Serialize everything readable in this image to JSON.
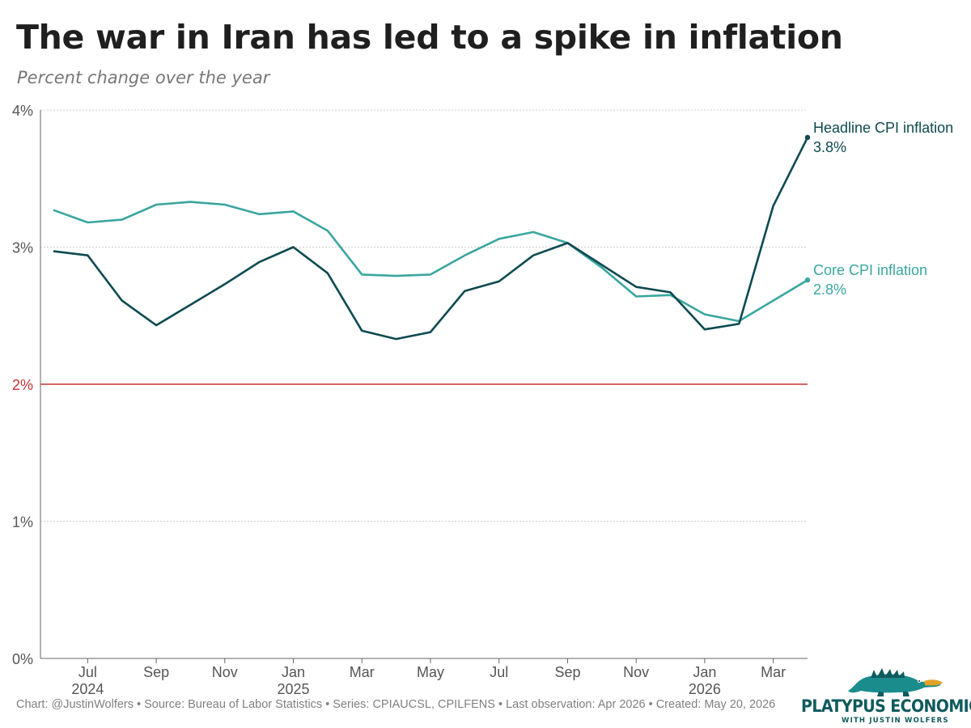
{
  "title": "The war in Iran has led to a spike in inflation",
  "subtitle": "Percent change over the year",
  "footer": "Chart: @JustinWolfers • Source: Bureau of Labor Statistics • Series: CPIAUCSL, CPILFENS • Last observation: Apr 2026 • Created: May 20, 2026",
  "logo": {
    "name": "PLATYPUS ECONOMICS",
    "tagline": "WITH JUSTIN WOLFERS"
  },
  "colors": {
    "headline": "#0d4a50",
    "core": "#3aa69f",
    "target": "#cc3333",
    "grid": "#cccccc",
    "axis": "#666666",
    "brand": "#0f5a5e"
  },
  "chart_data": {
    "type": "line",
    "x": [
      "2024-06",
      "2024-07",
      "2024-08",
      "2024-09",
      "2024-10",
      "2024-11",
      "2024-12",
      "2025-01",
      "2025-02",
      "2025-03",
      "2025-04",
      "2025-05",
      "2025-06",
      "2025-07",
      "2025-08",
      "2025-09",
      "2025-10",
      "2025-11",
      "2025-12",
      "2026-01",
      "2026-02",
      "2026-03",
      "2026-04"
    ],
    "x_ticks": [
      {
        "x": "2024-07",
        "label": "Jul",
        "year": "2024"
      },
      {
        "x": "2024-09",
        "label": "Sep"
      },
      {
        "x": "2024-11",
        "label": "Nov"
      },
      {
        "x": "2025-01",
        "label": "Jan",
        "year": "2025"
      },
      {
        "x": "2025-03",
        "label": "Mar"
      },
      {
        "x": "2025-05",
        "label": "May"
      },
      {
        "x": "2025-07",
        "label": "Jul"
      },
      {
        "x": "2025-09",
        "label": "Sep"
      },
      {
        "x": "2025-11",
        "label": "Nov"
      },
      {
        "x": "2026-01",
        "label": "Jan",
        "year": "2026"
      },
      {
        "x": "2026-03",
        "label": "Mar"
      }
    ],
    "y_ticks": [
      {
        "value": 0,
        "label": "0%"
      },
      {
        "value": 1,
        "label": "1%"
      },
      {
        "value": 2,
        "label": "2%"
      },
      {
        "value": 3,
        "label": "3%"
      },
      {
        "value": 4,
        "label": "4%"
      }
    ],
    "ylim": [
      0,
      4
    ],
    "target_line": 2,
    "grid": true,
    "series": [
      {
        "name": "Headline CPI inflation",
        "end_label": "3.8%",
        "color_key": "headline",
        "values": [
          2.97,
          2.94,
          2.61,
          2.43,
          2.58,
          2.73,
          2.89,
          3.0,
          2.81,
          2.39,
          2.33,
          2.38,
          2.68,
          2.75,
          2.94,
          3.03,
          2.87,
          2.71,
          2.67,
          2.4,
          2.44,
          3.3,
          3.8
        ]
      },
      {
        "name": "Core CPI inflation",
        "end_label": "2.8%",
        "color_key": "core",
        "values": [
          3.27,
          3.18,
          3.2,
          3.31,
          3.33,
          3.31,
          3.24,
          3.26,
          3.12,
          2.8,
          2.79,
          2.8,
          2.94,
          3.06,
          3.11,
          3.03,
          2.85,
          2.64,
          2.65,
          2.51,
          2.46,
          2.61,
          2.76
        ]
      }
    ]
  }
}
